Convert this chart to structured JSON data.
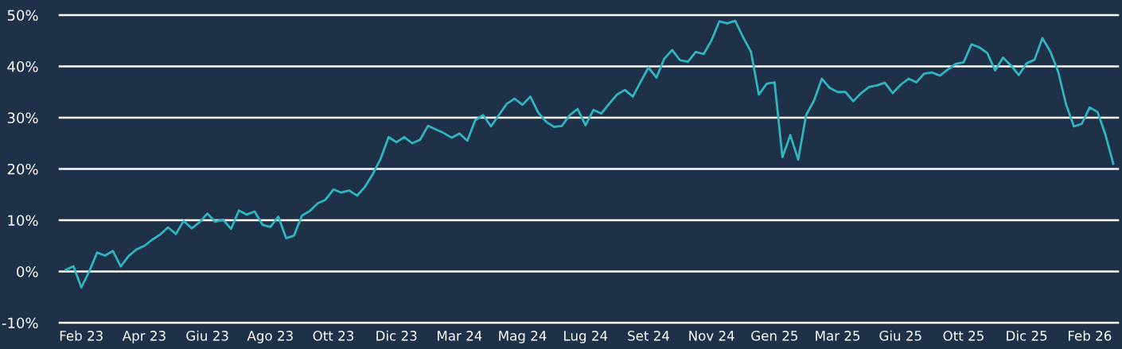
{
  "chart_data": {
    "type": "line",
    "categories": [
      null,
      null,
      "Feb 23",
      null,
      null,
      null,
      null,
      null,
      null,
      null,
      "Apr 23",
      null,
      null,
      null,
      null,
      null,
      null,
      null,
      "Giu 23",
      null,
      null,
      null,
      null,
      null,
      null,
      null,
      "Ago 23",
      null,
      null,
      null,
      null,
      null,
      null,
      null,
      "Ott 23",
      null,
      null,
      null,
      null,
      null,
      null,
      null,
      "Dic 23",
      null,
      null,
      null,
      null,
      null,
      null,
      null,
      "Mar 24",
      null,
      null,
      null,
      null,
      null,
      null,
      null,
      "Mag 24",
      null,
      null,
      null,
      null,
      null,
      null,
      null,
      "Lug 24",
      null,
      null,
      null,
      null,
      null,
      null,
      null,
      "Set 24",
      null,
      null,
      null,
      null,
      null,
      null,
      null,
      "Nov 24",
      null,
      null,
      null,
      null,
      null,
      null,
      null,
      "Gen 25",
      null,
      null,
      null,
      null,
      null,
      null,
      null,
      "Mar 25",
      null,
      null,
      null,
      null,
      null,
      null,
      null,
      "Giu 25",
      null,
      null,
      null,
      null,
      null,
      null,
      null,
      "Ott 25",
      null,
      null,
      null,
      null,
      null,
      null,
      null,
      "Dic 25",
      null,
      null,
      null,
      null,
      null,
      null,
      null,
      "Feb 26",
      null,
      null,
      null
    ],
    "series": [
      {
        "color": "#2fb5c0",
        "values": [
          0.3,
          1.0,
          -3.1,
          0.0,
          3.7,
          3.1,
          4.0,
          1.0,
          3.0,
          4.3,
          5.0,
          6.2,
          7.2,
          8.6,
          7.3,
          9.9,
          8.4,
          9.6,
          11.3,
          9.7,
          10.1,
          8.3,
          11.9,
          11.1,
          11.7,
          9.1,
          8.7,
          10.7,
          6.5,
          7.0,
          10.9,
          11.8,
          13.3,
          14.0,
          16.0,
          15.4,
          15.8,
          14.8,
          16.5,
          19.0,
          22.0,
          26.2,
          25.2,
          26.2,
          25.0,
          25.7,
          28.4,
          27.7,
          27.0,
          26.1,
          26.9,
          25.5,
          29.5,
          30.5,
          28.3,
          30.5,
          32.7,
          33.7,
          32.5,
          34.1,
          31.0,
          29.2,
          28.2,
          28.4,
          30.5,
          31.7,
          28.5,
          31.5,
          30.8,
          32.7,
          34.5,
          35.4,
          34.1,
          37.0,
          39.8,
          37.8,
          41.5,
          43.2,
          41.2,
          40.9,
          42.8,
          42.4,
          45.1,
          48.8,
          48.4,
          48.9,
          45.7,
          42.9,
          34.5,
          36.6,
          36.9,
          22.3,
          26.6,
          21.8,
          30.5,
          33.3,
          37.6,
          35.8,
          35.0,
          35.0,
          33.2,
          34.8,
          36.0,
          36.3,
          36.8,
          34.8,
          36.4,
          37.6,
          36.9,
          38.6,
          38.8,
          38.2,
          39.4,
          40.5,
          40.8,
          44.3,
          43.7,
          42.6,
          39.2,
          41.7,
          40.2,
          38.3,
          40.6,
          41.3,
          45.5,
          42.9,
          39.0,
          32.6,
          28.3,
          28.8,
          32.0,
          31.1,
          26.7,
          21.0
        ]
      }
    ],
    "ylim": [
      -10,
      50
    ],
    "yticks": [
      {
        "value": -10,
        "label": "-10%"
      },
      {
        "value": 0,
        "label": "0%"
      },
      {
        "value": 10,
        "label": "10%"
      },
      {
        "value": 20,
        "label": "20%"
      },
      {
        "value": 30,
        "label": "30%"
      },
      {
        "value": 40,
        "label": "40%"
      },
      {
        "value": 50,
        "label": "50%"
      }
    ],
    "grid": "y",
    "marker": "none",
    "line_style": "solid",
    "legend": false
  }
}
